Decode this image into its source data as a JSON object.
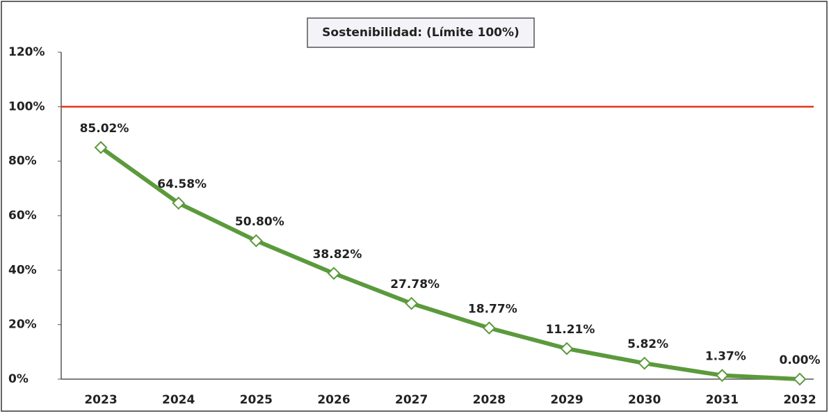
{
  "chart_data": {
    "type": "line",
    "title": "Sostenibilidad: (Límite 100%)",
    "categories": [
      "2023",
      "2024",
      "2025",
      "2026",
      "2027",
      "2028",
      "2029",
      "2030",
      "2031",
      "2032"
    ],
    "series": [
      {
        "name": "Sostenibilidad",
        "color": "#5b9a3c",
        "values": [
          85.02,
          64.58,
          50.8,
          38.82,
          27.78,
          18.77,
          11.21,
          5.82,
          1.37,
          0.0
        ],
        "value_labels": [
          "85.02%",
          "64.58%",
          "50.80%",
          "38.82%",
          "27.78%",
          "18.77%",
          "11.21%",
          "5.82%",
          "1.37%",
          "0.00%"
        ]
      }
    ],
    "limit": {
      "value": 100,
      "color": "#e8341c"
    },
    "ylim": [
      0,
      120
    ],
    "yticks": [
      {
        "value": 0,
        "label": "0%"
      },
      {
        "value": 20,
        "label": "20%"
      },
      {
        "value": 40,
        "label": "40%"
      },
      {
        "value": 60,
        "label": "60%"
      },
      {
        "value": 80,
        "label": "80%"
      },
      {
        "value": 100,
        "label": "100%"
      },
      {
        "value": 120,
        "label": "120%"
      }
    ]
  }
}
